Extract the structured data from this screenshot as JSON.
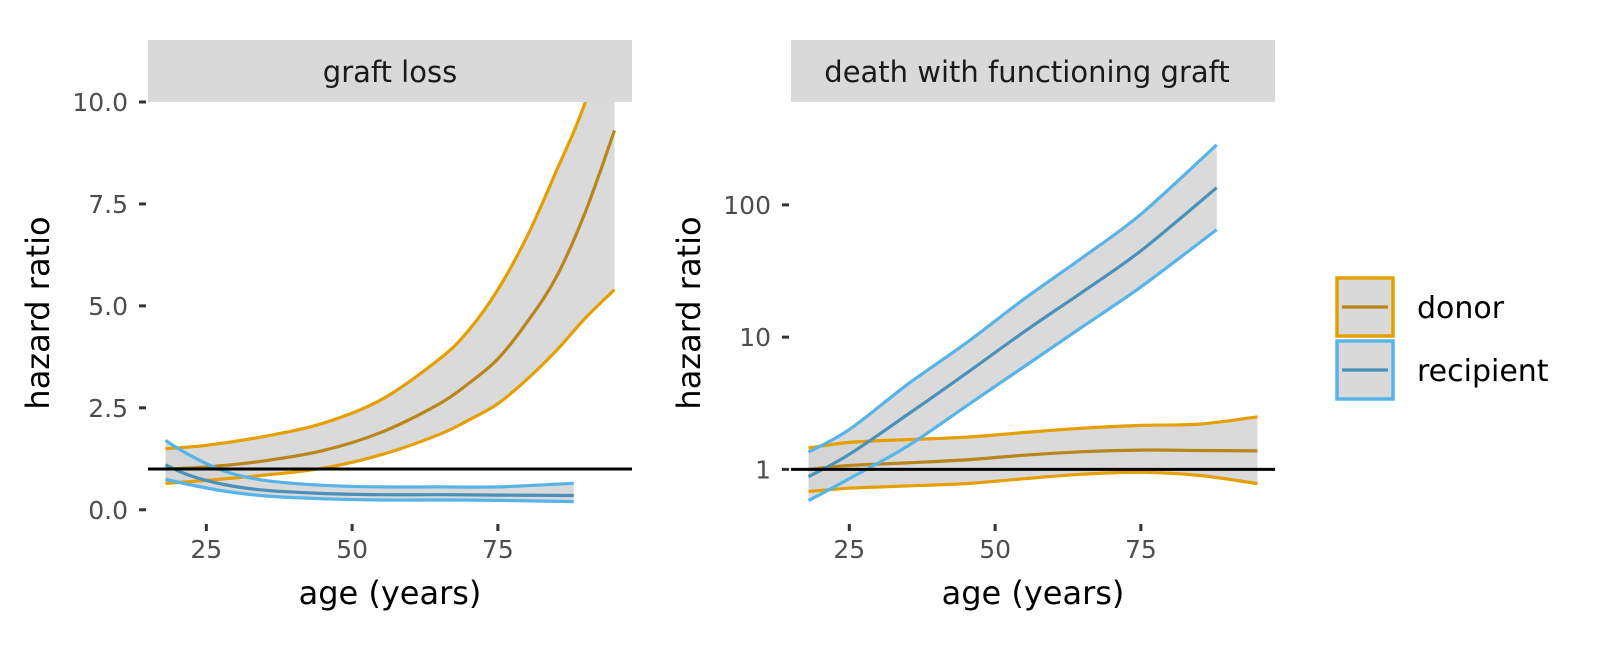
{
  "chart_data": [
    {
      "type": "line",
      "panel": "graft loss",
      "xlabel": "age (years)",
      "ylabel": "hazard ratio",
      "xlim": [
        15,
        98
      ],
      "ylim": [
        -0.3,
        10.0
      ],
      "yscale": "linear",
      "x_ticks": [
        25,
        50,
        75
      ],
      "x_tick_labels": [
        "25",
        "50",
        "75"
      ],
      "y_ticks": [
        0,
        2.5,
        5,
        7.5,
        10
      ],
      "y_tick_labels": [
        "0.0",
        "2.5",
        "5.0",
        "7.5",
        "10.0"
      ],
      "reference_line": 1,
      "grid": false,
      "series": [
        {
          "name": "donor",
          "x": [
            18,
            25,
            35,
            45,
            55,
            65,
            70,
            75,
            80,
            85,
            90,
            95
          ],
          "estimate": [
            1.0,
            1.05,
            1.2,
            1.45,
            1.9,
            2.6,
            3.1,
            3.7,
            4.6,
            5.7,
            7.3,
            9.3
          ],
          "lower": [
            0.65,
            0.72,
            0.85,
            1.02,
            1.35,
            1.85,
            2.2,
            2.6,
            3.2,
            3.9,
            4.7,
            5.4
          ],
          "upper": [
            1.5,
            1.58,
            1.8,
            2.12,
            2.7,
            3.7,
            4.4,
            5.4,
            6.7,
            8.3,
            10.0,
            12.5
          ]
        },
        {
          "name": "recipient",
          "x": [
            18,
            22,
            28,
            35,
            45,
            55,
            65,
            75,
            88
          ],
          "estimate": [
            1.1,
            0.85,
            0.62,
            0.48,
            0.4,
            0.37,
            0.37,
            0.36,
            0.35
          ],
          "lower": [
            0.75,
            0.62,
            0.46,
            0.34,
            0.27,
            0.24,
            0.24,
            0.23,
            0.2
          ],
          "upper": [
            1.7,
            1.35,
            0.95,
            0.72,
            0.6,
            0.56,
            0.56,
            0.56,
            0.65
          ]
        }
      ]
    },
    {
      "type": "line",
      "panel": "death with functioning graft",
      "xlabel": "age (years)",
      "ylabel": "hazard ratio",
      "xlim": [
        15,
        98
      ],
      "ylim": [
        0.4,
        600
      ],
      "yscale": "log",
      "x_ticks": [
        25,
        50,
        75
      ],
      "x_tick_labels": [
        "25",
        "50",
        "75"
      ],
      "y_ticks": [
        1,
        10,
        100
      ],
      "y_tick_labels": [
        "1",
        "10",
        "100"
      ],
      "reference_line": 1,
      "grid": false,
      "series": [
        {
          "name": "donor",
          "x": [
            18,
            25,
            35,
            45,
            55,
            65,
            75,
            85,
            95
          ],
          "estimate": [
            1.0,
            1.07,
            1.12,
            1.18,
            1.28,
            1.36,
            1.4,
            1.39,
            1.38
          ],
          "lower": [
            0.68,
            0.72,
            0.75,
            0.78,
            0.85,
            0.92,
            0.95,
            0.9,
            0.78
          ],
          "upper": [
            1.45,
            1.6,
            1.68,
            1.75,
            1.9,
            2.05,
            2.15,
            2.2,
            2.5
          ]
        },
        {
          "name": "recipient",
          "x": [
            18,
            25,
            35,
            45,
            55,
            65,
            75,
            88
          ],
          "estimate": [
            0.88,
            1.3,
            2.6,
            5.3,
            11.0,
            22.0,
            45.0,
            135.0
          ],
          "lower": [
            0.58,
            0.85,
            1.5,
            3.0,
            6.0,
            12.0,
            24.0,
            65.0
          ],
          "upper": [
            1.35,
            2.0,
            4.4,
            9.0,
            19.5,
            40.0,
            85.0,
            285.0
          ]
        }
      ]
    }
  ],
  "legend": {
    "position": "right",
    "entries": [
      {
        "label": "donor",
        "line_color": "#b8861a",
        "border_color": "#e69f00",
        "fill": "#d9d9d9"
      },
      {
        "label": "recipient",
        "line_color": "#4a90b8",
        "border_color": "#56b4e9",
        "fill": "#d9d9d9"
      }
    ]
  },
  "colors": {
    "donor_band": "#e69f00",
    "donor_line": "#b8861a",
    "recipient_band": "#56b4e9",
    "recipient_line": "#4a90b8",
    "ribbon_fill": "#d3d3d3",
    "strip_fill": "#d9d9d9",
    "reference_line": "#000000"
  }
}
